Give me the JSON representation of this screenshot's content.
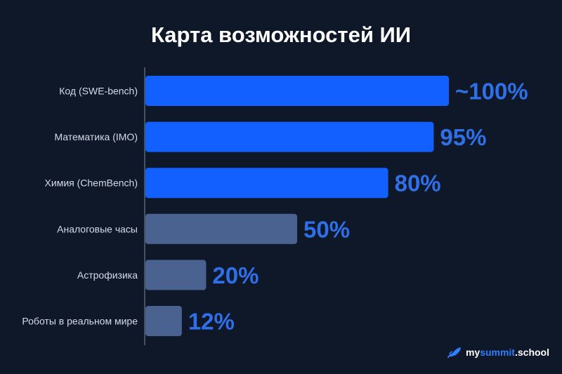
{
  "chart_data": {
    "type": "bar",
    "orientation": "horizontal",
    "title": "Карта возможностей ИИ",
    "xlabel": "",
    "ylabel": "",
    "xlim": [
      0,
      100
    ],
    "grid": false,
    "categories": [
      "Код (SWE-bench)",
      "Математика (IMO)",
      "Химия (ChemBench)",
      "Аналоговые часы",
      "Астрофизика",
      "Роботы в реальном мире"
    ],
    "values": [
      100,
      95,
      80,
      50,
      20,
      12
    ],
    "value_labels": [
      "~100%",
      "95%",
      "80%",
      "50%",
      "20%",
      "12%"
    ],
    "bar_colors": [
      "#1160ff",
      "#1160ff",
      "#1160ff",
      "#4a6290",
      "#4a6290",
      "#4a6290"
    ],
    "value_label_color": "#2f6fe8"
  },
  "colors": {
    "background": "#0f1829",
    "axis": "#5a6478"
  },
  "brand": {
    "icon": "rocket-icon",
    "prefix": "my",
    "accent": "summit",
    "suffix": ".school"
  }
}
